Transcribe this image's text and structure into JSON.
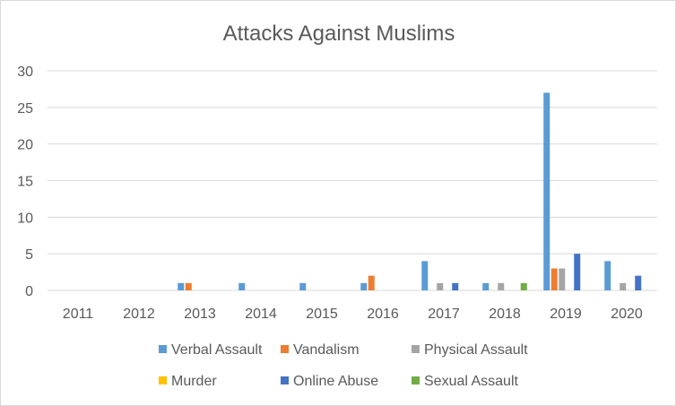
{
  "chart_data": {
    "type": "bar",
    "title": "Attacks Against Muslims",
    "xlabel": "",
    "ylabel": "",
    "categories": [
      "2011",
      "2012",
      "2013",
      "2014",
      "2015",
      "2016",
      "2017",
      "2018",
      "2019",
      "2020"
    ],
    "ylim": [
      0,
      30
    ],
    "yticks": [
      "0",
      "5",
      "10",
      "15",
      "20",
      "25",
      "30"
    ],
    "grid": true,
    "legend_position": "bottom",
    "series": [
      {
        "name": "Verbal Assault",
        "color": "#5b9bd5",
        "values": [
          0,
          0,
          1,
          1,
          1,
          1,
          4,
          1,
          27,
          4
        ]
      },
      {
        "name": "Vandalism",
        "color": "#ed7d31",
        "values": [
          0,
          0,
          1,
          0,
          0,
          2,
          0,
          0,
          3,
          0
        ]
      },
      {
        "name": "Physical Assault",
        "color": "#a5a5a5",
        "values": [
          0,
          0,
          0,
          0,
          0,
          0,
          1,
          1,
          3,
          1
        ]
      },
      {
        "name": "Murder",
        "color": "#ffc000",
        "values": [
          0,
          0,
          0,
          0,
          0,
          0,
          0,
          0,
          0,
          0
        ]
      },
      {
        "name": "Online Abuse",
        "color": "#4472c4",
        "values": [
          0,
          0,
          0,
          0,
          0,
          0,
          1,
          0,
          5,
          2
        ]
      },
      {
        "name": "Sexual Assault",
        "color": "#70ad47",
        "values": [
          0,
          0,
          0,
          0,
          0,
          0,
          0,
          1,
          0,
          0
        ]
      }
    ]
  }
}
